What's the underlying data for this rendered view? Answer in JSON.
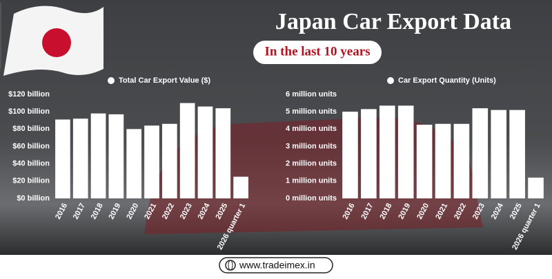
{
  "header": {
    "title": "Japan Car Export Data",
    "subtitle": "In the last 10 years"
  },
  "footer": {
    "url": "www.tradeimex.in"
  },
  "chart_data": [
    {
      "type": "bar",
      "categories": [
        "2016",
        "2017",
        "2018",
        "2019",
        "2020",
        "2021",
        "2022",
        "2023",
        "2024",
        "2025",
        "2026 quarter 1"
      ],
      "series": [
        {
          "name": "Total Car Export Value ($)",
          "color": "#ffffff",
          "values": [
            91,
            92,
            98,
            97,
            80,
            84,
            86,
            110,
            106,
            104,
            25
          ]
        }
      ],
      "ylim": [
        0,
        120
      ],
      "yticks": [
        {
          "value": 0,
          "label": "$0 billion"
        },
        {
          "value": 20,
          "label": "$20 billion"
        },
        {
          "value": 40,
          "label": "$40 billion"
        },
        {
          "value": 60,
          "label": "$60 billion"
        },
        {
          "value": 80,
          "label": "$80 billion"
        },
        {
          "value": 100,
          "label": "$100 billion"
        },
        {
          "value": 120,
          "label": "$120 billion"
        }
      ]
    },
    {
      "type": "bar",
      "categories": [
        "2016",
        "2017",
        "2018",
        "2019",
        "2020",
        "2021",
        "2022",
        "2023",
        "2024",
        "2025",
        "2026 quarter 1"
      ],
      "series": [
        {
          "name": "Car Export Quantity (Units)",
          "color": "#ffffff",
          "values": [
            5.0,
            5.15,
            5.35,
            5.35,
            4.25,
            4.3,
            4.3,
            5.2,
            5.1,
            5.1,
            1.2
          ]
        }
      ],
      "ylim": [
        0,
        6
      ],
      "yticks": [
        {
          "value": 0,
          "label": "0 million units"
        },
        {
          "value": 1,
          "label": "1 million units"
        },
        {
          "value": 2,
          "label": "2 million units"
        },
        {
          "value": 3,
          "label": "3 million units"
        },
        {
          "value": 4,
          "label": "4 million units"
        },
        {
          "value": 5,
          "label": "5 million units"
        },
        {
          "value": 6,
          "label": "6 million units"
        }
      ]
    }
  ]
}
